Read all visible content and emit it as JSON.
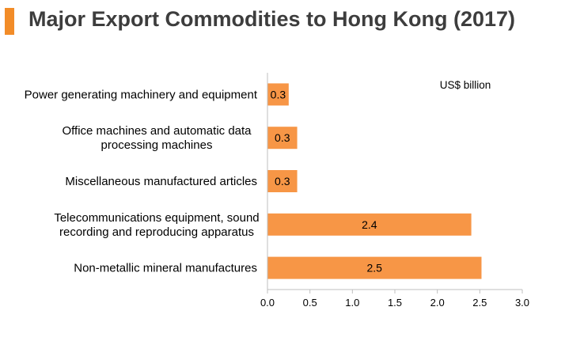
{
  "title": "Major Export Commodities to Hong Kong (2017)",
  "colors": {
    "accent": "#f28c28",
    "bar": "#f79646",
    "text": "#000000",
    "title": "#3d3d3d",
    "axis": "#bfbfbf"
  },
  "chart_data": {
    "type": "bar",
    "orientation": "horizontal",
    "unit_label": "US$ billion",
    "categories": [
      [
        "Power generating machinery and equipment"
      ],
      [
        "Office machines and automatic data",
        "processing machines"
      ],
      [
        "Miscellaneous manufactured articles"
      ],
      [
        "Telecommunications equipment, sound",
        "recording and reproducing apparatus"
      ],
      [
        "Non-metallic mineral manufactures"
      ]
    ],
    "values": [
      0.25,
      0.35,
      0.35,
      2.4,
      2.52
    ],
    "data_labels": [
      "0.3",
      "0.3",
      "0.3",
      "2.4",
      "2.5"
    ],
    "xlim": [
      0,
      3.0
    ],
    "xticks": [
      "0.0",
      "0.5",
      "1.0",
      "1.5",
      "2.0",
      "2.5",
      "3.0"
    ],
    "grid": false,
    "legend": "none"
  }
}
